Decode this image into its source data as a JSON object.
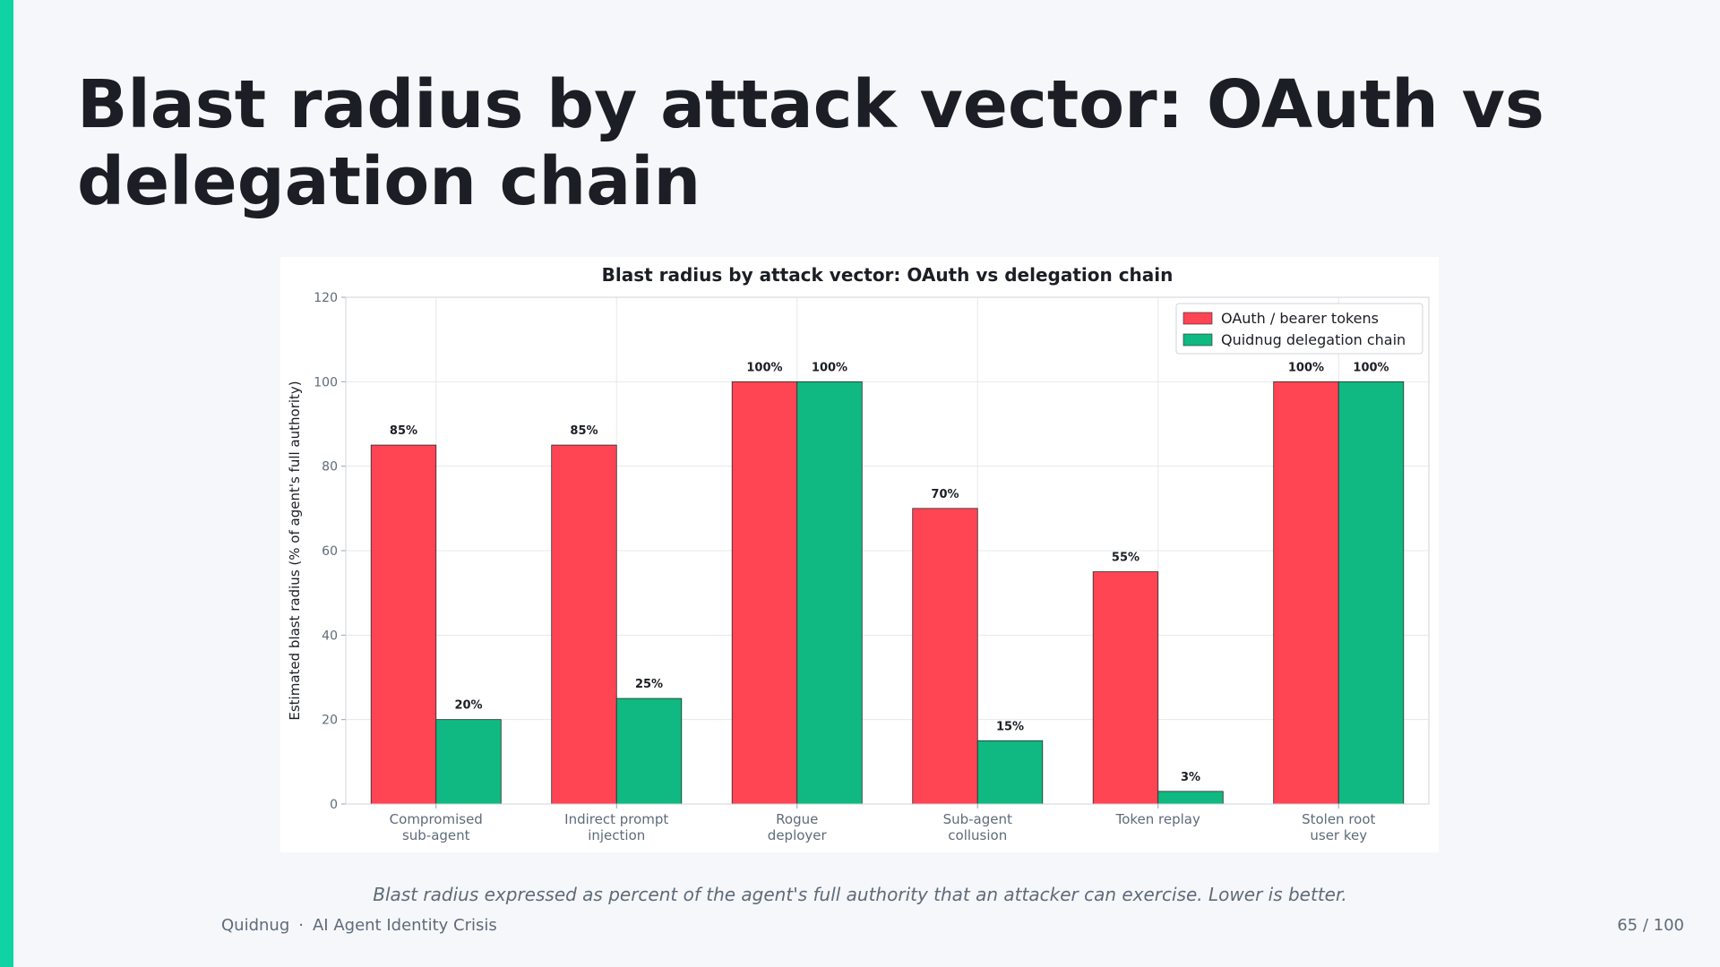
{
  "slide": {
    "title": "Blast radius by attack vector: OAuth vs delegation chain",
    "caption": "Blast radius expressed as percent of the agent's full authority that an attacker can exercise. Lower is better.",
    "footer_brand": "Quidnug",
    "footer_separator": "·",
    "footer_deck": "AI Agent Identity Crisis",
    "page_number": "65 / 100"
  },
  "colors": {
    "accent": "#0fd3a2",
    "oauth": "#ff4554",
    "quidnug": "#10b981",
    "text_dark": "#1b1e24",
    "text_muted": "#5f6b7a"
  },
  "chart_data": {
    "type": "bar",
    "title": "Blast radius by attack vector: OAuth vs delegation chain",
    "xlabel": "",
    "ylabel": "Estimated blast radius (% of agent's full authority)",
    "ylim": [
      0,
      120
    ],
    "yticks": [
      0,
      20,
      40,
      60,
      80,
      100,
      120
    ],
    "grid": true,
    "legend_position": "top-right",
    "categories": [
      [
        "Compromised",
        "sub-agent"
      ],
      [
        "Indirect prompt",
        "injection"
      ],
      [
        "Rogue",
        "deployer"
      ],
      [
        "Sub-agent",
        "collusion"
      ],
      [
        "Token replay"
      ],
      [
        "Stolen root",
        "user key"
      ]
    ],
    "series": [
      {
        "name": "OAuth / bearer tokens",
        "color": "#ff4554",
        "values": [
          85,
          85,
          100,
          70,
          55,
          100
        ],
        "labels": [
          "85%",
          "85%",
          "100%",
          "70%",
          "55%",
          "100%"
        ]
      },
      {
        "name": "Quidnug delegation chain",
        "color": "#10b981",
        "values": [
          20,
          25,
          100,
          15,
          3,
          100
        ],
        "labels": [
          "20%",
          "25%",
          "100%",
          "15%",
          "3%",
          "100%"
        ]
      }
    ]
  }
}
